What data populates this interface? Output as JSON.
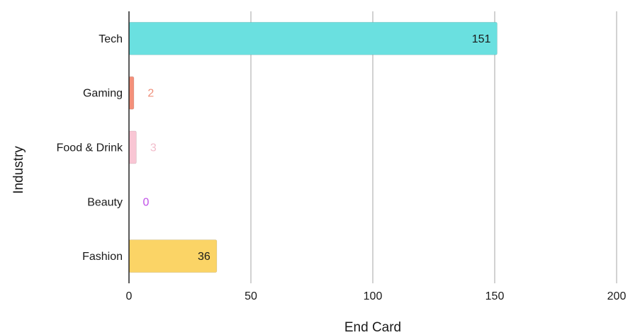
{
  "chart_data": {
    "type": "bar",
    "orientation": "horizontal",
    "categories": [
      "Tech",
      "Gaming",
      "Food & Drink",
      "Beauty",
      "Fashion"
    ],
    "values": [
      151,
      2,
      3,
      0,
      36
    ],
    "colors": [
      "#6ae0e0",
      "#f4907a",
      "#f9c6d4",
      "#d78cf0",
      "#fbd466"
    ],
    "label_colors": [
      "#1a1a1a",
      "#ef8f7a",
      "#f2bccb",
      "#c050e8",
      "#1a1a1a"
    ],
    "xlabel": "End Card",
    "ylabel": "Industry",
    "xlim": [
      0,
      200
    ],
    "xticks": [
      0,
      50,
      100,
      150,
      200
    ],
    "grid": true
  }
}
